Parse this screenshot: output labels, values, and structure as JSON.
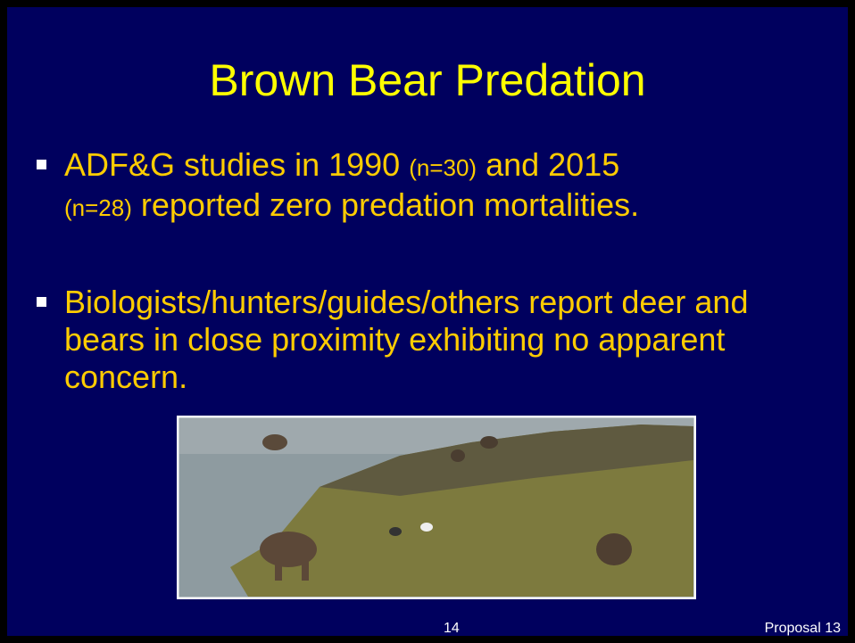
{
  "header": {
    "title": "Brown Bear Predation"
  },
  "bullets": [
    {
      "parts": [
        "ADF&G studies in 1990 ",
        "(n=30)",
        " and 2015",
        "(n=28)",
        " reported zero predation mortalities."
      ]
    },
    {
      "parts": [
        "Biologists/hunters/guides/others report deer and bears in close proximity exhibiting no apparent concern."
      ]
    }
  ],
  "footer": {
    "page_number": "14",
    "label": "Proposal 13"
  }
}
